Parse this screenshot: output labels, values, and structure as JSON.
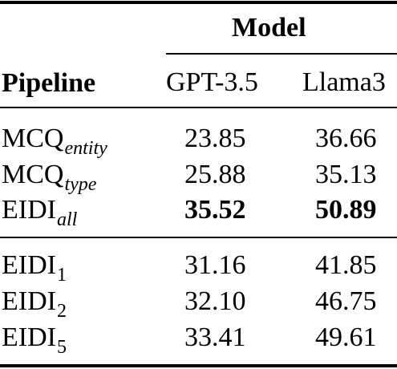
{
  "table": {
    "header": {
      "group_label": "Model",
      "pipeline_label": "Pipeline",
      "columns": [
        "GPT-3.5",
        "Llama3"
      ]
    },
    "rows": [
      {
        "label_base": "MCQ",
        "label_sub": "entity",
        "gpt": "23.85",
        "llama": "36.66"
      },
      {
        "label_base": "MCQ",
        "label_sub": "type",
        "gpt": "25.88",
        "llama": "35.13"
      },
      {
        "label_base": "EIDI",
        "label_sub": "all",
        "gpt": "35.52",
        "llama": "50.89"
      },
      {
        "label_base": "EIDI",
        "label_sub": "1",
        "gpt": "31.16",
        "llama": "41.85"
      },
      {
        "label_base": "EIDI",
        "label_sub": "2",
        "gpt": "32.10",
        "llama": "46.75"
      },
      {
        "label_base": "EIDI",
        "label_sub": "5",
        "gpt": "33.41",
        "llama": "49.61"
      }
    ]
  }
}
